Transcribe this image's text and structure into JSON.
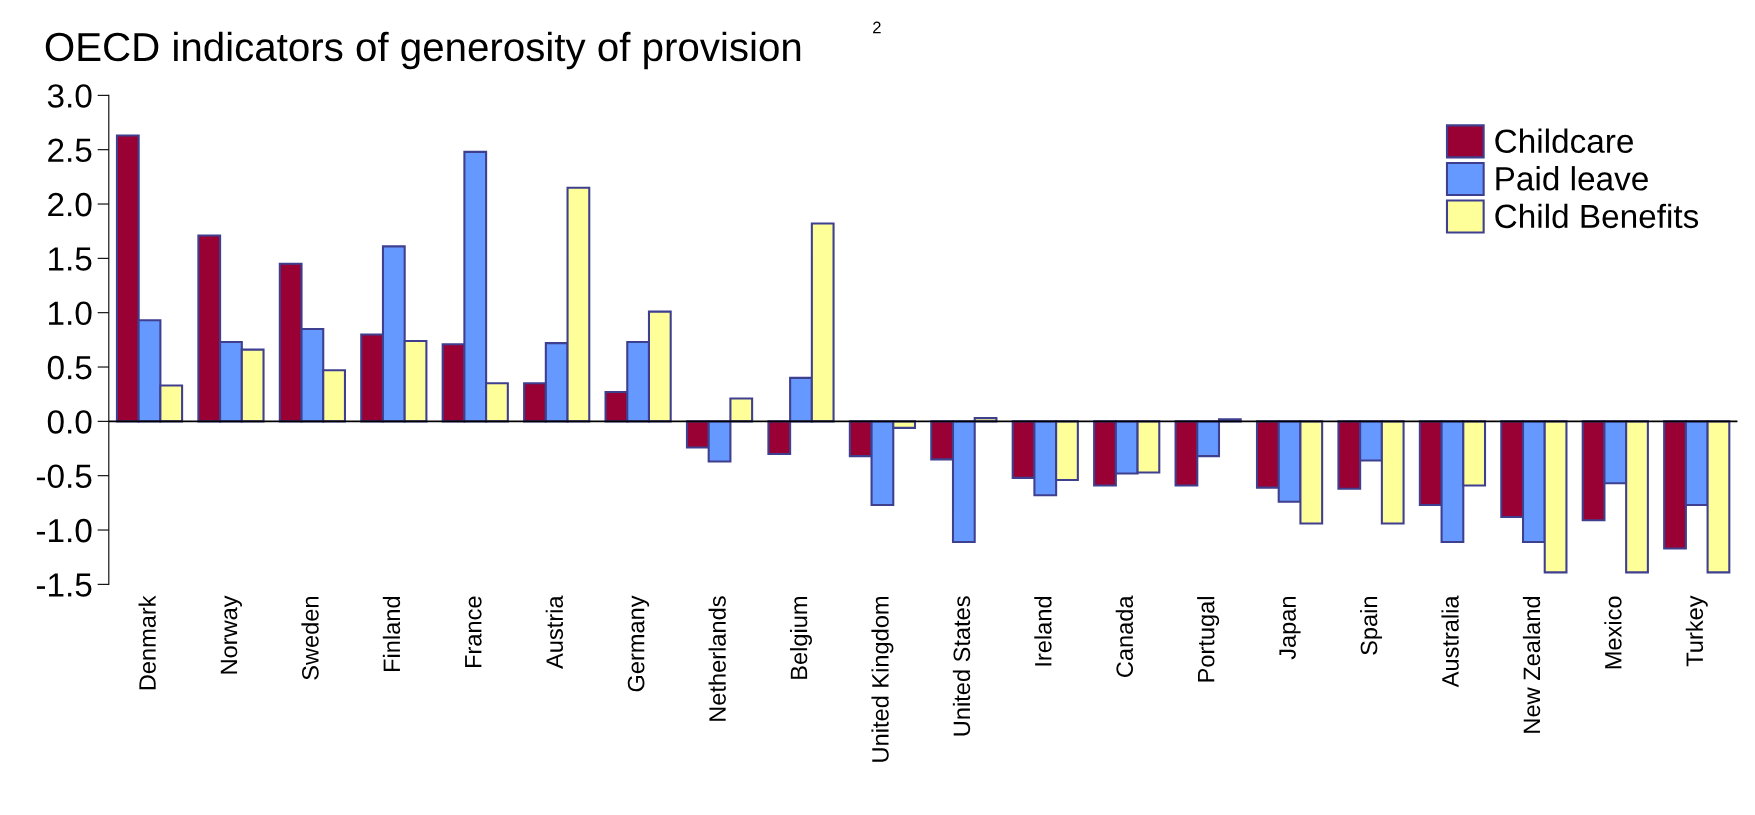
{
  "chart_data": {
    "type": "bar",
    "title": "OECD indicators of generosity of provision",
    "annotations": [
      "2"
    ],
    "categories": [
      "Denmark",
      "Norway",
      "Sweden",
      "Finland",
      "France",
      "Austria",
      "Germany",
      "Netherlands",
      "Belgium",
      "United Kingdom",
      "United States",
      "Ireland",
      "Canada",
      "Portugal",
      "Japan",
      "Spain",
      "Australia",
      "New Zealand",
      "Mexico",
      "Turkey"
    ],
    "series": [
      {
        "name": "Childcare",
        "color": "#990033",
        "values": [
          2.63,
          1.71,
          1.45,
          0.8,
          0.71,
          0.35,
          0.27,
          -0.24,
          -0.3,
          -0.32,
          -0.35,
          -0.52,
          -0.59,
          -0.59,
          -0.61,
          -0.62,
          -0.77,
          -0.88,
          -0.91,
          -1.17
        ]
      },
      {
        "name": "Paid leave",
        "color": "#6699ff",
        "values": [
          0.93,
          0.73,
          0.85,
          1.61,
          2.48,
          0.72,
          0.73,
          -0.37,
          0.4,
          -0.77,
          -1.11,
          -0.68,
          -0.48,
          -0.32,
          -0.74,
          -0.36,
          -1.11,
          -1.11,
          -0.57,
          -0.77
        ]
      },
      {
        "name": "Child Benefits",
        "color": "#ffff99",
        "values": [
          0.33,
          0.66,
          0.47,
          0.74,
          0.35,
          2.15,
          1.01,
          0.21,
          1.82,
          -0.06,
          0.03,
          -0.54,
          -0.47,
          0.02,
          -0.94,
          -0.94,
          -0.59,
          -1.39,
          -1.39,
          -1.39
        ]
      }
    ],
    "ylim": [
      -1.5,
      3.0
    ],
    "yticks": [
      {
        "value": -1.5,
        "label": "-1.5"
      },
      {
        "value": -1.0,
        "label": "-1.0"
      },
      {
        "value": -0.5,
        "label": "-0.5"
      },
      {
        "value": 0,
        "label": "0.0"
      },
      {
        "value": 0.5,
        "label": "0.5"
      },
      {
        "value": 1.0,
        "label": "1.0"
      },
      {
        "value": 1.5,
        "label": "1.5"
      },
      {
        "value": 2.0,
        "label": "2.0"
      },
      {
        "value": 2.5,
        "label": "2.5"
      },
      {
        "value": 3.0,
        "label": "3.0"
      }
    ],
    "ref_lines": [
      {
        "axis": "y",
        "value": 0,
        "color": "#000000"
      }
    ],
    "grid": false,
    "legend": "top right"
  }
}
